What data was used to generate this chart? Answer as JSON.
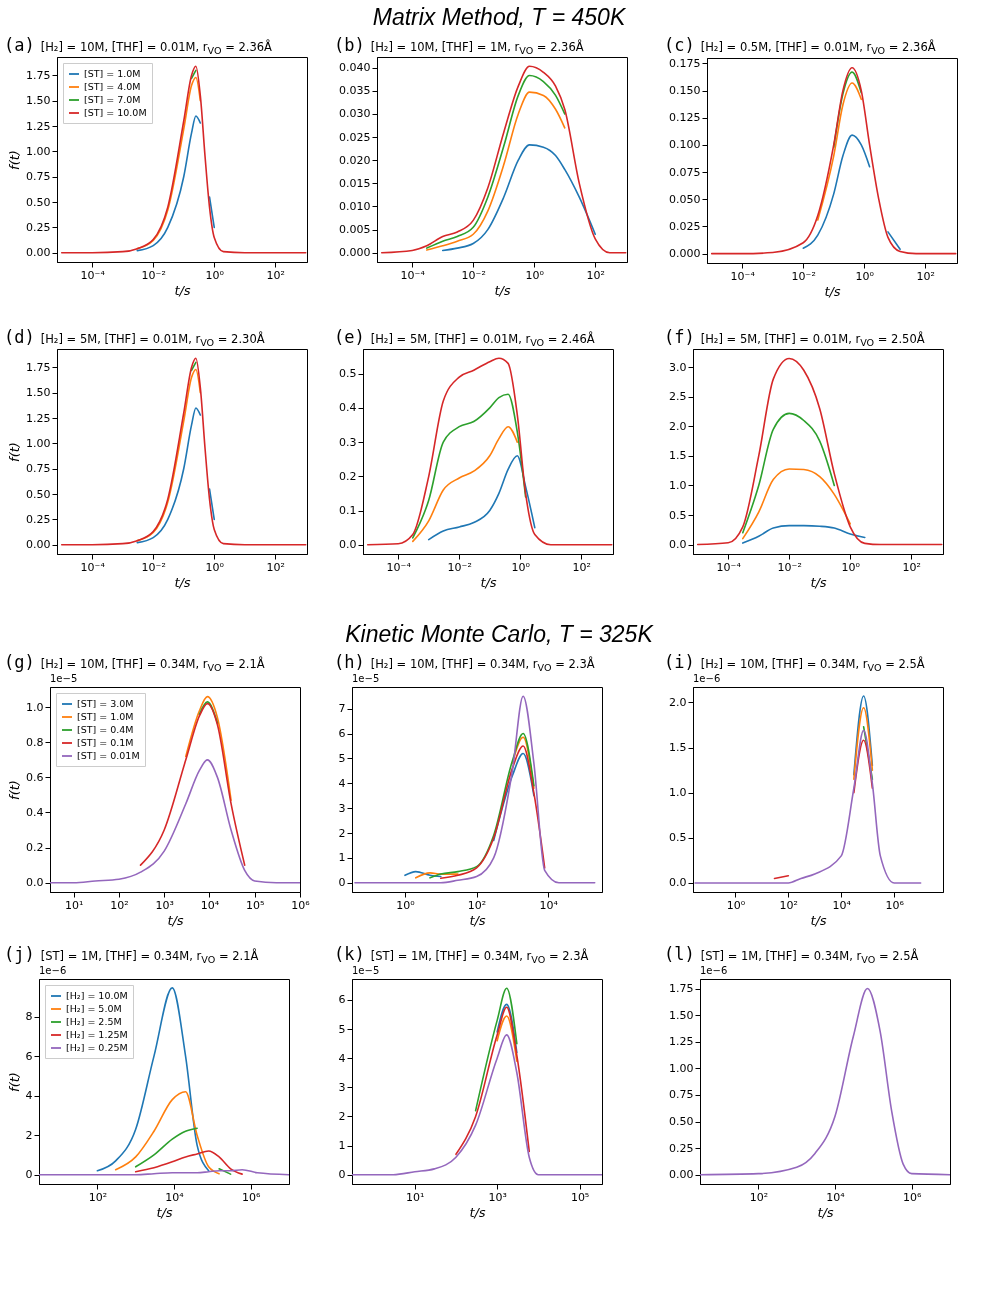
{
  "chart_data": [
    {
      "type": "other",
      "title": "Matrix Method, T = 450K"
    },
    {
      "type": "line",
      "title": "(a)",
      "subtitle": "[H₂] = 10M, [THF] = 0.01M, r$_{VO}$ = 2.36Å",
      "xlabel": "t/s",
      "ylabel": "f(t)",
      "log": "x",
      "legend": "top left",
      "xlim": [
        7e-06,
        1100
      ],
      "ylim": [
        -0.092,
        1.932
      ],
      "xticks": [
        {
          "value": 0.0001,
          "label": "10⁻⁴"
        },
        {
          "value": 0.01,
          "label": "10⁻²"
        },
        {
          "value": 1,
          "label": "10⁰"
        },
        {
          "value": 100,
          "label": "10²"
        }
      ],
      "yticks": [
        {
          "value": 0,
          "label": "0.00"
        },
        0.25,
        {
          "value": 0.5,
          "label": "0.50"
        },
        0.75,
        {
          "value": 1,
          "label": "1.00"
        },
        1.25,
        {
          "value": 1.5,
          "label": "1.50"
        },
        1.75
      ],
      "x": [
        1e-05,
        0.0001,
        0.001,
        0.003,
        0.01,
        0.03,
        0.1,
        0.18,
        0.25,
        0.35,
        0.5,
        0.7,
        1,
        2,
        10,
        1000
      ],
      "series": [
        {
          "name": "[ST] = 1.0M",
          "color": "#1f77b4",
          "values": [
            null,
            null,
            null,
            0.02,
            0.07,
            0.25,
            0.75,
            1.18,
            1.35,
            1.28,
            null,
            0.55,
            0.25,
            null,
            null,
            null
          ]
        },
        {
          "name": "[ST] = 4.0M",
          "color": "#ff7f0e",
          "values": [
            null,
            null,
            null,
            0.04,
            0.12,
            0.42,
            1.22,
            1.65,
            1.73,
            1.5,
            null,
            null,
            null,
            null,
            null,
            null
          ]
        },
        {
          "name": "[ST] = 7.0M",
          "color": "#2ca02c",
          "values": [
            null,
            null,
            null,
            null,
            null,
            null,
            null,
            1.72,
            1.8,
            null,
            null,
            null,
            null,
            null,
            null,
            null
          ]
        },
        {
          "name": "[ST] = 10.0M",
          "color": "#d62728",
          "values": [
            0,
            0,
            0.01,
            0.04,
            0.13,
            0.45,
            1.3,
            1.75,
            1.84,
            1.55,
            0.95,
            0.45,
            0.15,
            0.01,
            0,
            0
          ]
        }
      ]
    },
    {
      "type": "line",
      "title": "(b)",
      "subtitle": "[H₂] = 10M, [THF] = 1M, r$_{VO}$ = 2.36Å",
      "xlabel": "t/s",
      "log": "x",
      "xlim": [
        7e-06,
        1100
      ],
      "ylim": [
        -0.002,
        0.0423
      ],
      "xticks": [
        {
          "value": 0.0001,
          "label": "10⁻⁴"
        },
        {
          "value": 0.01,
          "label": "10⁻²"
        },
        {
          "value": 1,
          "label": "10⁰"
        },
        {
          "value": 100,
          "label": "10²"
        }
      ],
      "yticks": [
        {
          "value": 0,
          "label": "0.000"
        },
        0.005,
        {
          "value": 0.01,
          "label": "0.010"
        },
        0.015,
        {
          "value": 0.02,
          "label": "0.020"
        },
        0.025,
        {
          "value": 0.03,
          "label": "0.030"
        },
        0.035,
        {
          "value": 0.04,
          "label": "0.040"
        }
      ],
      "x": [
        1e-05,
        0.0001,
        0.0003,
        0.001,
        0.003,
        0.01,
        0.03,
        0.1,
        0.3,
        0.7,
        2,
        5,
        10,
        30,
        100,
        300,
        1000
      ],
      "series": [
        {
          "color": "#1f77b4",
          "values": [
            null,
            null,
            null,
            0.0005,
            0.001,
            0.002,
            0.005,
            0.012,
            0.02,
            0.0233,
            0.0228,
            0.021,
            0.018,
            0.012,
            0.004,
            null,
            null
          ]
        },
        {
          "color": "#ff7f0e",
          "values": [
            null,
            null,
            0.0006,
            0.0015,
            0.0025,
            0.004,
            0.009,
            0.019,
            0.03,
            0.0347,
            0.034,
            0.031,
            0.027,
            null,
            null,
            null,
            null
          ]
        },
        {
          "color": "#2ca02c",
          "values": [
            null,
            null,
            0.001,
            0.0025,
            0.0035,
            0.0055,
            0.012,
            0.023,
            0.034,
            0.0383,
            0.037,
            0.034,
            0.03,
            null,
            null,
            null,
            null
          ]
        },
        {
          "color": "#d62728",
          "values": [
            0,
            0.0005,
            0.0015,
            0.0035,
            0.0045,
            0.007,
            0.014,
            0.026,
            0.036,
            0.0403,
            0.039,
            0.036,
            0.031,
            0.015,
            0.003,
            0,
            0
          ]
        }
      ]
    },
    {
      "type": "line",
      "title": "(c)",
      "subtitle": "[H₂] = 0.5M, [THF] = 0.01M, r$_{VO}$ = 2.36Å",
      "xlabel": "t/s",
      "log": "x",
      "xlim": [
        7e-06,
        1100
      ],
      "ylim": [
        -0.0086,
        0.18
      ],
      "xticks": [
        {
          "value": 0.0001,
          "label": "10⁻⁴"
        },
        {
          "value": 0.01,
          "label": "10⁻²"
        },
        {
          "value": 1,
          "label": "10⁰"
        },
        {
          "value": 100,
          "label": "10²"
        }
      ],
      "yticks": [
        {
          "value": 0,
          "label": "0.000"
        },
        0.025,
        {
          "value": 0.05,
          "label": "0.050"
        },
        0.075,
        {
          "value": 0.1,
          "label": "0.100"
        },
        0.125,
        {
          "value": 0.15,
          "label": "0.150"
        },
        0.175
      ],
      "x": [
        1e-05,
        0.0001,
        0.001,
        0.01,
        0.03,
        0.1,
        0.2,
        0.4,
        0.8,
        1.5,
        3,
        6,
        15,
        50,
        1000
      ],
      "series": [
        {
          "color": "#1f77b4",
          "values": [
            null,
            null,
            null,
            0.005,
            0.017,
            0.055,
            0.09,
            0.109,
            0.1,
            0.08,
            null,
            0.02,
            0.004,
            null,
            null
          ]
        },
        {
          "color": "#ff7f0e",
          "values": [
            null,
            null,
            null,
            null,
            0.031,
            0.09,
            0.137,
            0.157,
            0.142,
            null,
            null,
            null,
            null,
            null,
            null
          ]
        },
        {
          "color": "#2ca02c",
          "values": [
            null,
            null,
            null,
            null,
            null,
            0.098,
            0.147,
            0.167,
            0.148,
            null,
            null,
            null,
            null,
            null,
            null
          ]
        },
        {
          "color": "#d62728",
          "values": [
            0,
            0,
            0.001,
            0.01,
            0.035,
            0.1,
            0.15,
            0.171,
            0.15,
            0.1,
            0.05,
            0.015,
            0.002,
            0,
            0
          ]
        }
      ]
    },
    {
      "type": "line",
      "title": "(d)",
      "subtitle": "[H₂] = 5M, [THF] = 0.01M, r$_{VO}$ = 2.30Å",
      "xlabel": "t/s",
      "ylabel": "f(t)",
      "log": "x",
      "xlim": [
        7e-06,
        1100
      ],
      "ylim": [
        -0.092,
        1.932
      ],
      "xticks": [
        {
          "value": 0.0001,
          "label": "10⁻⁴"
        },
        {
          "value": 0.01,
          "label": "10⁻²"
        },
        {
          "value": 1,
          "label": "10⁰"
        },
        {
          "value": 100,
          "label": "10²"
        }
      ],
      "yticks": [
        {
          "value": 0,
          "label": "0.00"
        },
        0.25,
        {
          "value": 0.5,
          "label": "0.50"
        },
        0.75,
        {
          "value": 1,
          "label": "1.00"
        },
        1.25,
        {
          "value": 1.5,
          "label": "1.50"
        },
        1.75
      ],
      "x": [
        1e-05,
        0.0001,
        0.001,
        0.003,
        0.01,
        0.03,
        0.1,
        0.18,
        0.25,
        0.35,
        0.5,
        0.7,
        1,
        2,
        10,
        1000
      ],
      "series": [
        {
          "color": "#1f77b4",
          "values": [
            null,
            null,
            null,
            0.02,
            0.07,
            0.25,
            0.75,
            1.18,
            1.35,
            1.28,
            null,
            0.55,
            0.25,
            null,
            null,
            null
          ]
        },
        {
          "color": "#ff7f0e",
          "values": [
            null,
            null,
            null,
            0.04,
            0.12,
            0.42,
            1.22,
            1.65,
            1.73,
            1.5,
            null,
            null,
            null,
            null,
            null,
            null
          ]
        },
        {
          "color": "#2ca02c",
          "values": [
            null,
            null,
            null,
            null,
            null,
            null,
            null,
            1.72,
            1.8,
            null,
            null,
            null,
            null,
            null,
            null,
            null
          ]
        },
        {
          "color": "#d62728",
          "values": [
            0,
            0,
            0.01,
            0.04,
            0.13,
            0.45,
            1.3,
            1.75,
            1.84,
            1.55,
            0.95,
            0.45,
            0.15,
            0.01,
            0,
            0
          ]
        }
      ]
    },
    {
      "type": "line",
      "title": "(e)",
      "subtitle": "[H₂] = 5M, [THF] = 0.01M, r$_{VO}$ = 2.46Å",
      "xlabel": "t/s",
      "log": "x",
      "xlim": [
        7e-06,
        1100
      ],
      "ylim": [
        -0.027,
        0.572
      ],
      "xticks": [
        {
          "value": 0.0001,
          "label": "10⁻⁴"
        },
        {
          "value": 0.01,
          "label": "10⁻²"
        },
        {
          "value": 1,
          "label": "10⁰"
        },
        {
          "value": 100,
          "label": "10²"
        }
      ],
      "yticks": [
        {
          "value": 0,
          "label": "0.0"
        },
        0.1,
        0.2,
        0.3,
        0.4,
        0.5
      ],
      "x": [
        1e-05,
        0.0001,
        0.0003,
        0.001,
        0.003,
        0.01,
        0.03,
        0.1,
        0.2,
        0.4,
        0.8,
        1.5,
        3,
        10,
        100,
        1000
      ],
      "series": [
        {
          "color": "#1f77b4",
          "values": [
            null,
            null,
            null,
            0.015,
            0.04,
            0.052,
            0.065,
            0.1,
            0.15,
            0.22,
            0.26,
            0.17,
            0.05,
            null,
            null,
            null
          ]
        },
        {
          "color": "#ff7f0e",
          "values": [
            null,
            null,
            0.01,
            0.07,
            0.16,
            0.195,
            0.215,
            0.26,
            0.31,
            0.345,
            0.3,
            null,
            null,
            null,
            null,
            null
          ]
        },
        {
          "color": "#2ca02c",
          "values": [
            null,
            null,
            0.02,
            0.13,
            0.3,
            0.345,
            0.36,
            0.4,
            0.43,
            0.44,
            0.33,
            0.14,
            null,
            null,
            null,
            null
          ]
        },
        {
          "color": "#d62728",
          "values": [
            0,
            0.003,
            0.03,
            0.2,
            0.42,
            0.49,
            0.51,
            0.535,
            0.545,
            0.53,
            0.38,
            0.15,
            0.03,
            0,
            0,
            0
          ]
        }
      ]
    },
    {
      "type": "line",
      "title": "(f)",
      "subtitle": "[H₂] = 5M, [THF] = 0.01M, r$_{VO}$ = 2.50Å",
      "xlabel": "t/s",
      "log": "x",
      "xlim": [
        7e-06,
        1100
      ],
      "ylim": [
        -0.16,
        3.31
      ],
      "xticks": [
        {
          "value": 0.0001,
          "label": "10⁻⁴"
        },
        {
          "value": 0.01,
          "label": "10⁻²"
        },
        {
          "value": 1,
          "label": "10⁰"
        },
        {
          "value": 100,
          "label": "10²"
        }
      ],
      "yticks": [
        {
          "value": 0,
          "label": "0.0"
        },
        0.5,
        {
          "value": 1,
          "label": "1.0"
        },
        1.5,
        {
          "value": 2,
          "label": "2.0"
        },
        2.5,
        {
          "value": 3,
          "label": "3.0"
        }
      ],
      "x": [
        1e-05,
        0.0001,
        0.0003,
        0.001,
        0.003,
        0.01,
        0.03,
        0.1,
        0.3,
        1,
        3,
        10,
        100,
        1000
      ],
      "series": [
        {
          "color": "#1f77b4",
          "values": [
            null,
            null,
            0.025,
            0.14,
            0.28,
            0.32,
            0.32,
            0.31,
            0.28,
            0.18,
            0.12,
            null,
            null,
            null
          ]
        },
        {
          "color": "#ff7f0e",
          "values": [
            null,
            null,
            0.1,
            0.55,
            1.1,
            1.28,
            1.27,
            1.15,
            0.85,
            0.35,
            null,
            null,
            null,
            null
          ]
        },
        {
          "color": "#2ca02c",
          "values": [
            null,
            null,
            0.2,
            1.0,
            1.95,
            2.22,
            2.1,
            1.75,
            1.0,
            null,
            null,
            null,
            null,
            null
          ]
        },
        {
          "color": "#d62728",
          "values": [
            0,
            0.03,
            0.3,
            1.5,
            2.8,
            3.15,
            2.95,
            2.3,
            1.2,
            0.3,
            0.02,
            0,
            0,
            0
          ]
        }
      ]
    },
    {
      "type": "other",
      "title": "Kinetic Monte Carlo, T = 325K"
    },
    {
      "type": "line",
      "title": "(g)",
      "subtitle": "[H₂] = 10M, [THF] = 0.34M, r$_{VO}$ = 2.1Å",
      "annotations": [
        "1e−5"
      ],
      "xlabel": "t/s",
      "ylabel": "f(t)",
      "log": "x",
      "legend": "top left",
      "xlim": [
        3,
        1000000
      ],
      "ylim": [
        -0.053,
        1.115
      ],
      "xticks": [
        {
          "value": 10,
          "label": "10¹"
        },
        {
          "value": 100,
          "label": "10²"
        },
        {
          "value": 1000,
          "label": "10³"
        },
        {
          "value": 10000,
          "label": "10⁴"
        },
        {
          "value": 100000,
          "label": "10⁵"
        },
        {
          "value": 1000000,
          "label": "10⁶"
        }
      ],
      "yticks": [
        {
          "value": 0,
          "label": "0.0"
        },
        0.2,
        0.4,
        0.6,
        0.8,
        {
          "value": 1,
          "label": "1.0"
        }
      ],
      "x": [
        3,
        10,
        30,
        100,
        300,
        1000,
        3000,
        6000,
        9000,
        15000,
        30000,
        60000,
        100000,
        300000,
        1000000
      ],
      "series": [
        {
          "name": "[ST] = 3.0M",
          "color": "#1f77b4",
          "values": [
            null,
            null,
            null,
            null,
            null,
            null,
            null,
            null,
            null,
            null,
            null,
            null,
            null,
            null,
            null
          ]
        },
        {
          "name": "[ST] = 1.0M",
          "color": "#ff7f0e",
          "values": [
            null,
            null,
            null,
            null,
            null,
            null,
            0.72,
            0.98,
            1.06,
            0.94,
            0.47,
            null,
            null,
            null,
            null
          ]
        },
        {
          "name": "[ST] = 0.4M",
          "color": "#2ca02c",
          "values": [
            null,
            null,
            null,
            null,
            null,
            null,
            null,
            0.96,
            1.03,
            0.91,
            null,
            null,
            null,
            null,
            null
          ]
        },
        {
          "name": "[ST] = 0.1M",
          "color": "#d62728",
          "values": [
            null,
            null,
            null,
            null,
            0.1,
            0.3,
            0.7,
            0.95,
            1.02,
            0.9,
            0.45,
            0.1,
            null,
            null,
            null
          ]
        },
        {
          "name": "[ST] = 0.01M",
          "color": "#9467bd",
          "values": [
            0,
            0,
            0.01,
            0.02,
            0.06,
            0.18,
            0.45,
            0.64,
            0.7,
            0.6,
            0.3,
            0.07,
            0.01,
            0,
            0
          ]
        }
      ]
    },
    {
      "type": "line",
      "title": "(h)",
      "subtitle": "[H₂] = 10M, [THF] = 0.34M, r$_{VO}$ = 2.3Å",
      "annotations": [
        "1e−5"
      ],
      "xlabel": "t/s",
      "log": "x",
      "xlim": [
        0.033,
        320000
      ],
      "ylim": [
        -0.37,
        7.87
      ],
      "xticks": [
        {
          "value": 1,
          "label": "10⁰"
        },
        {
          "value": 100,
          "label": "10²"
        },
        {
          "value": 10000,
          "label": "10⁴"
        }
      ],
      "yticks": [
        0,
        1,
        2,
        3,
        4,
        5,
        6,
        7
      ],
      "x": [
        0.04,
        0.3,
        1,
        2,
        5,
        10,
        30,
        100,
        300,
        1000,
        2000,
        4000,
        8000,
        20000,
        200000
      ],
      "series": [
        {
          "color": "#1f77b4",
          "values": [
            null,
            null,
            0.3,
            0.45,
            0.3,
            0.25,
            null,
            null,
            1.7,
            4.3,
            5.2,
            3.5,
            null,
            null,
            null
          ]
        },
        {
          "color": "#ff7f0e",
          "values": [
            null,
            null,
            null,
            0.2,
            0.4,
            0.35,
            0.35,
            null,
            null,
            4.8,
            5.85,
            3.8,
            null,
            null,
            null
          ]
        },
        {
          "color": "#2ca02c",
          "values": [
            null,
            null,
            null,
            null,
            0.2,
            0.35,
            0.45,
            0.65,
            1.9,
            4.9,
            6.0,
            3.9,
            null,
            null,
            null
          ]
        },
        {
          "color": "#d62728",
          "values": [
            null,
            null,
            null,
            null,
            null,
            0.18,
            0.3,
            0.6,
            1.8,
            4.6,
            5.5,
            3.6,
            0.6,
            null,
            null
          ]
        },
        {
          "color": "#9467bd",
          "values": [
            0,
            0,
            0,
            0,
            0,
            0,
            0.1,
            0.25,
            1.0,
            4.5,
            7.5,
            4.8,
            0.5,
            0,
            0
          ]
        }
      ]
    },
    {
      "type": "line",
      "title": "(i)",
      "subtitle": "[H₂] = 10M, [THF] = 0.34M, r$_{VO}$ = 2.5Å",
      "annotations": [
        "1e−6"
      ],
      "xlabel": "t/s",
      "log": "x",
      "xlim": [
        0.025,
        70000000
      ],
      "ylim": [
        -0.1,
        2.17
      ],
      "xticks": [
        {
          "value": 1,
          "label": "10⁰"
        },
        {
          "value": 100,
          "label": "10²"
        },
        {
          "value": 10000,
          "label": "10⁴"
        },
        {
          "value": 1000000,
          "label": "10⁶"
        }
      ],
      "yticks": [
        {
          "value": 0,
          "label": "0.0"
        },
        0.5,
        {
          "value": 1,
          "label": "1.0"
        },
        1.5,
        {
          "value": 2,
          "label": "2.0"
        }
      ],
      "x": [
        0.03,
        1,
        10,
        30,
        100,
        300,
        1000,
        10000,
        30000,
        70000,
        150000,
        300000,
        1000000,
        10000000
      ],
      "series": [
        {
          "color": "#1f77b4",
          "values": [
            null,
            null,
            null,
            null,
            null,
            null,
            null,
            null,
            1.2,
            2.07,
            1.3,
            null,
            null,
            null
          ]
        },
        {
          "color": "#ff7f0e",
          "values": [
            null,
            null,
            null,
            null,
            null,
            null,
            null,
            null,
            1.15,
            1.94,
            1.25,
            null,
            null,
            null
          ]
        },
        {
          "color": "#2ca02c",
          "values": [
            null,
            null,
            null,
            null,
            null,
            null,
            null,
            null,
            null,
            1.73,
            1.15,
            null,
            null,
            null
          ]
        },
        {
          "color": "#d62728",
          "values": [
            null,
            null,
            null,
            0.05,
            0.08,
            null,
            null,
            null,
            1.0,
            1.58,
            1.05,
            null,
            null,
            null
          ]
        },
        {
          "color": "#9467bd",
          "values": [
            0,
            0,
            0,
            0,
            0,
            0.05,
            0.1,
            0.3,
            1.05,
            1.69,
            1.1,
            0.3,
            0,
            0
          ]
        }
      ]
    },
    {
      "type": "line",
      "title": "(j)",
      "subtitle": "[ST] = 1M, [THF] = 0.34M, r$_{VO}$ = 2.1Å",
      "annotations": [
        "1e−6"
      ],
      "xlabel": "t/s",
      "ylabel": "f(t)",
      "log": "x",
      "legend": "top left",
      "xlim": [
        3,
        10000000
      ],
      "ylim": [
        -0.47,
        9.9
      ],
      "xticks": [
        {
          "value": 100,
          "label": "10²"
        },
        {
          "value": 10000,
          "label": "10⁴"
        },
        {
          "value": 1000000,
          "label": "10⁶"
        }
      ],
      "yticks": [
        0,
        2,
        4,
        6,
        8
      ],
      "x": [
        3,
        30,
        100,
        300,
        1000,
        3000,
        9000,
        20000,
        40000,
        80000,
        150000,
        300000,
        600000,
        1500000,
        10000000
      ],
      "series": [
        {
          "name": "[H₂] = 10.0M",
          "color": "#1f77b4",
          "values": [
            null,
            null,
            0.2,
            0.7,
            2.3,
            6.0,
            9.45,
            6.0,
            1.5,
            0.2,
            null,
            null,
            null,
            null,
            null
          ]
        },
        {
          "name": "[H₂] = 5.0M",
          "color": "#ff7f0e",
          "values": [
            null,
            null,
            null,
            0.25,
            0.9,
            2.2,
            3.8,
            4.2,
            2.0,
            0.4,
            0.05,
            null,
            null,
            null,
            null
          ]
        },
        {
          "name": "[H₂] = 2.5M",
          "color": "#2ca02c",
          "values": [
            null,
            null,
            null,
            null,
            0.4,
            1.0,
            1.8,
            2.2,
            2.35,
            null,
            0.3,
            0.03,
            null,
            null,
            null
          ]
        },
        {
          "name": "[H₂] = 1.25M",
          "color": "#d62728",
          "values": [
            null,
            null,
            null,
            null,
            0.15,
            0.35,
            0.65,
            0.9,
            1.05,
            1.2,
            0.9,
            0.3,
            0.03,
            null,
            null
          ]
        },
        {
          "name": "[H₂] = 0.25M",
          "color": "#9467bd",
          "values": [
            0,
            0,
            0,
            0,
            0,
            0.05,
            0.1,
            0.1,
            0.1,
            0.15,
            0.2,
            0.2,
            0.25,
            0.1,
            0
          ]
        }
      ]
    },
    {
      "type": "line",
      "title": "(k)",
      "subtitle": "[ST] = 1M, [THF] = 0.34M, r$_{VO}$ = 2.3Å",
      "annotations": [
        "1e−5"
      ],
      "xlabel": "t/s",
      "log": "x",
      "xlim": [
        0.3,
        350000
      ],
      "ylim": [
        -0.32,
        6.72
      ],
      "xticks": [
        {
          "value": 10,
          "label": "10¹"
        },
        {
          "value": 1000,
          "label": "10³"
        },
        {
          "value": 100000,
          "label": "10⁵"
        }
      ],
      "yticks": [
        0,
        1,
        2,
        3,
        4,
        5,
        6
      ],
      "x": [
        0.3,
        3,
        10,
        30,
        100,
        300,
        1000,
        1700,
        3000,
        6000,
        10000,
        30000,
        350000
      ],
      "series": [
        {
          "color": "#1f77b4",
          "values": [
            null,
            null,
            null,
            null,
            null,
            null,
            4.9,
            5.85,
            4.2,
            null,
            null,
            null,
            null
          ]
        },
        {
          "color": "#ff7f0e",
          "values": [
            null,
            null,
            null,
            null,
            null,
            null,
            4.6,
            5.45,
            3.9,
            null,
            null,
            null,
            null
          ]
        },
        {
          "color": "#2ca02c",
          "values": [
            null,
            null,
            null,
            null,
            null,
            2.2,
            5.3,
            6.4,
            4.5,
            null,
            null,
            null,
            null
          ]
        },
        {
          "color": "#d62728",
          "values": [
            null,
            null,
            null,
            null,
            0.7,
            2.0,
            4.8,
            5.75,
            4.1,
            0.8,
            null,
            null,
            null
          ]
        },
        {
          "color": "#9467bd",
          "values": [
            0,
            0,
            0.1,
            0.2,
            0.6,
            1.7,
            4.0,
            4.8,
            3.5,
            0.6,
            0,
            0,
            0
          ]
        }
      ]
    },
    {
      "type": "line",
      "title": "(l)",
      "subtitle": "[ST] = 1M, [THF] = 0.34M, r$_{VO}$ = 2.5Å",
      "annotations": [
        "1e−6"
      ],
      "xlabel": "t/s",
      "log": "x",
      "xlim": [
        3,
        10000000
      ],
      "ylim": [
        -0.0875,
        1.84
      ],
      "xticks": [
        {
          "value": 100,
          "label": "10²"
        },
        {
          "value": 10000,
          "label": "10⁴"
        },
        {
          "value": 1000000,
          "label": "10⁶"
        }
      ],
      "yticks": [
        {
          "value": 0,
          "label": "0.00"
        },
        0.25,
        {
          "value": 0.5,
          "label": "0.50"
        },
        0.75,
        {
          "value": 1,
          "label": "1.00"
        },
        1.25,
        {
          "value": 1.5,
          "label": "1.50"
        },
        1.75
      ],
      "x": [
        3,
        100,
        1000,
        3000,
        10000,
        30000,
        70000,
        150000,
        300000,
        600000,
        1000000,
        10000000
      ],
      "series": [
        {
          "color": "#9467bd",
          "values": [
            0,
            0.01,
            0.07,
            0.2,
            0.55,
            1.3,
            1.75,
            1.35,
            0.6,
            0.1,
            0.01,
            0
          ]
        }
      ]
    }
  ]
}
